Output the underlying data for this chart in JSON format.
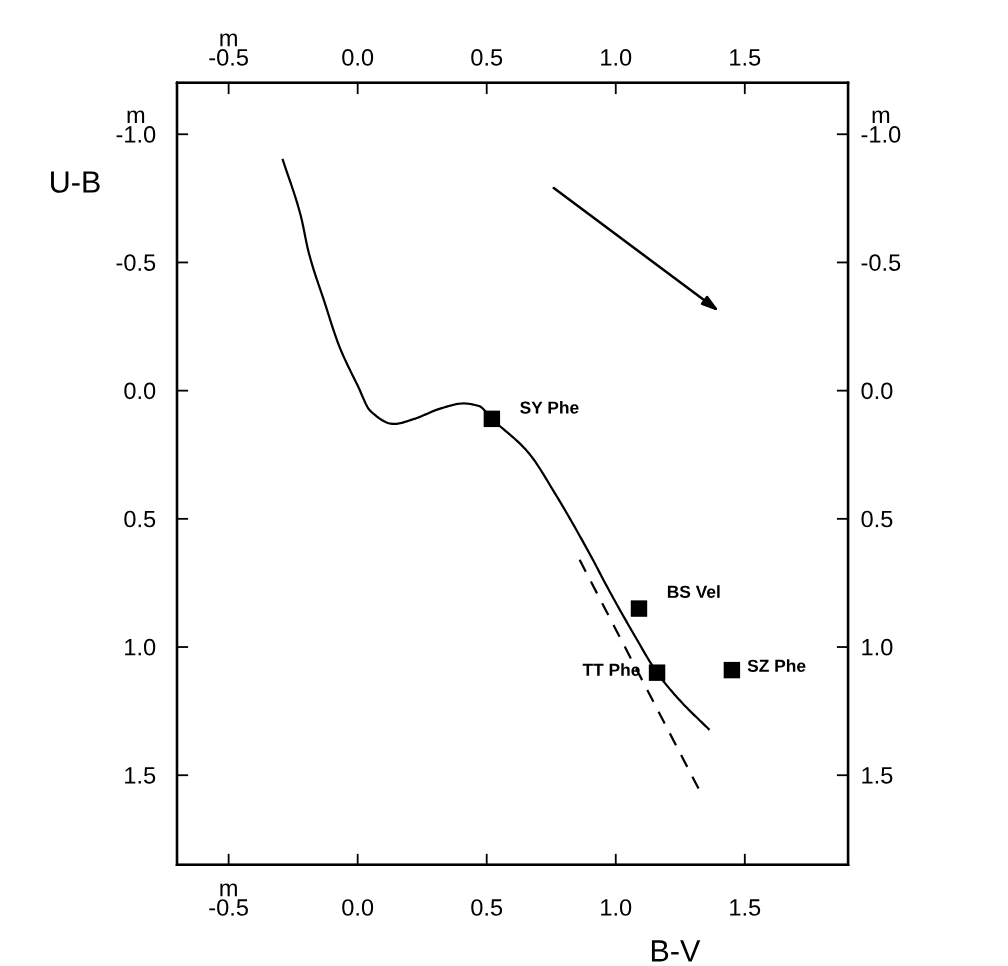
{
  "chart_data": {
    "type": "line",
    "xlabel": "B-V",
    "ylabel": "U-B",
    "xlim": [
      -0.7,
      1.9
    ],
    "ylim": [
      1.85,
      -1.2
    ],
    "xticks": [
      {
        "value": -0.5,
        "label": "m\n-0.5"
      },
      {
        "value": 0,
        "label": "0.0"
      },
      0.5,
      {
        "value": 1,
        "label": "1.0"
      },
      1.5
    ],
    "yticks": [
      {
        "value": -1,
        "label": "m\n-1.0"
      },
      -0.5,
      {
        "value": 0,
        "label": "0.0"
      },
      0.5,
      {
        "value": 1,
        "label": "1.0"
      },
      1.5
    ],
    "x2lim": [
      -0.7,
      1.9
    ],
    "x2ticks": [
      {
        "value": -0.5,
        "label": "m\n-0.5"
      },
      {
        "value": 0,
        "label": "0.0"
      },
      0.5,
      {
        "value": 1,
        "label": "1.0"
      },
      1.5
    ],
    "y2lim": [
      1.85,
      -1.2
    ],
    "y2ticks": [
      {
        "value": -1,
        "label": "m\n-1.0"
      },
      -0.5,
      {
        "value": 0,
        "label": "0.0"
      },
      0.5,
      {
        "value": 1,
        "label": "1.0"
      },
      1.5
    ],
    "grid": false,
    "legend": false,
    "series": [
      {
        "color": "#000000",
        "line_style": "solid",
        "marker": "none",
        "x": [
          -0.29,
          -0.22,
          -0.19,
          -0.13,
          -0.07,
          0.0,
          0.05,
          0.14,
          0.22,
          0.32,
          0.41,
          0.47,
          0.52,
          0.66,
          0.77,
          0.89,
          0.98,
          1.07,
          1.16,
          1.25,
          1.36
        ],
        "values": [
          -0.9,
          -0.68,
          -0.54,
          -0.35,
          -0.17,
          -0.02,
          0.08,
          0.13,
          0.11,
          0.07,
          0.05,
          0.06,
          0.11,
          0.24,
          0.41,
          0.62,
          0.79,
          0.95,
          1.1,
          1.21,
          1.32
        ]
      },
      {
        "color": "#000000",
        "line_style": "dashed",
        "marker": "none",
        "x": [
          0.86,
          1.33
        ],
        "values": [
          0.66,
          1.57
        ]
      },
      {
        "type": "scatter",
        "color": "#000000",
        "marker": "square",
        "x": [
          0.52,
          1.09,
          1.16,
          1.45
        ],
        "values": [
          0.11,
          0.85,
          1.1,
          1.09
        ]
      }
    ],
    "annotations": [
      {
        "text": "SY Phe",
        "x": 0.52,
        "y": 0.11
      },
      {
        "text": "BS Vel",
        "x": 1.09,
        "y": 0.85
      },
      {
        "text": "TT Phe",
        "x": 1.16,
        "y": 1.1
      },
      {
        "text": "SZ Phe",
        "x": 1.45,
        "y": 1.09
      }
    ]
  }
}
